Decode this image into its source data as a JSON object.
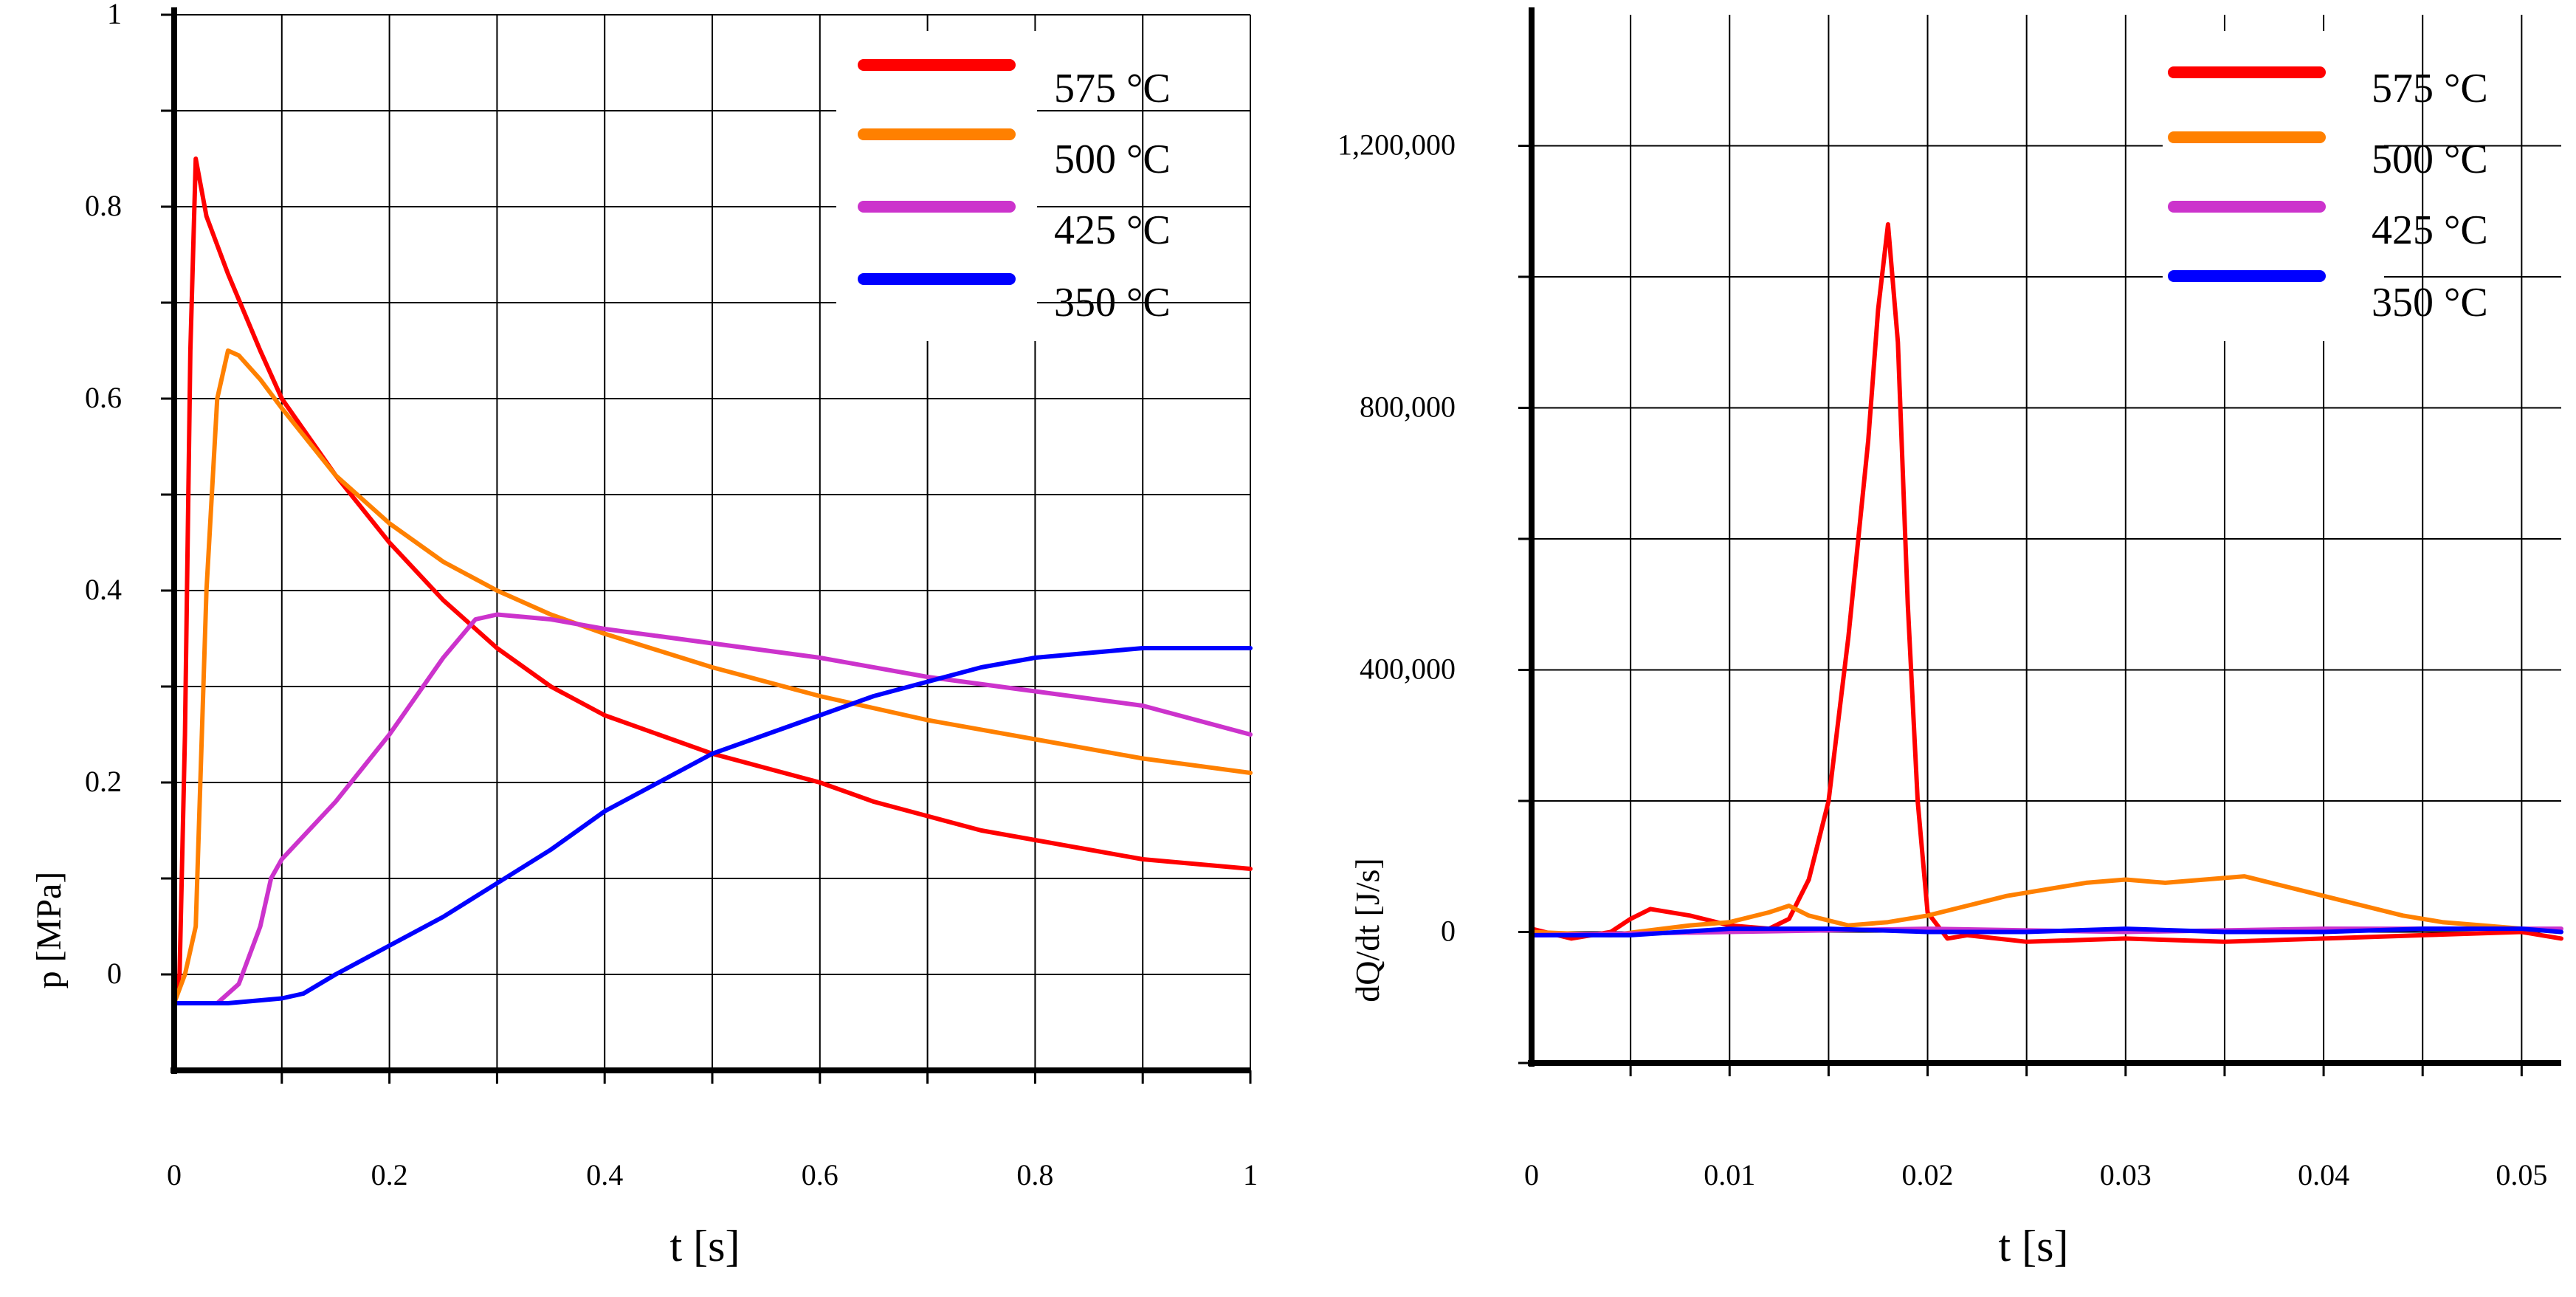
{
  "chart_data": [
    {
      "type": "line",
      "title": "",
      "xlabel": "t [s]",
      "ylabel": "p [MPa]",
      "xlim": [
        0,
        1
      ],
      "ylim": [
        -0.1,
        1.0
      ],
      "xticks": [
        0,
        0.2,
        0.4,
        0.6,
        0.8,
        1
      ],
      "xtick_labels": [
        "0",
        "0.2",
        "0.4",
        "0.6",
        "0.8",
        "1"
      ],
      "yticks": [
        0,
        0.2,
        0.4,
        0.6,
        0.8,
        1
      ],
      "ytick_labels": [
        "0",
        "0.2",
        "0.4",
        "0.6",
        "0.8",
        "1"
      ],
      "grid": true,
      "legend_position": "top-right",
      "series": [
        {
          "name": "575 °C",
          "color": "#ff0000",
          "x": [
            0,
            0.005,
            0.01,
            0.015,
            0.02,
            0.03,
            0.05,
            0.08,
            0.1,
            0.15,
            0.2,
            0.25,
            0.3,
            0.35,
            0.4,
            0.45,
            0.5,
            0.55,
            0.6,
            0.65,
            0.7,
            0.75,
            0.8,
            0.85,
            0.9,
            0.95,
            1.0
          ],
          "y": [
            -0.03,
            0.0,
            0.25,
            0.65,
            0.85,
            0.79,
            0.73,
            0.65,
            0.6,
            0.52,
            0.45,
            0.39,
            0.34,
            0.3,
            0.27,
            0.25,
            0.23,
            0.215,
            0.2,
            0.18,
            0.165,
            0.15,
            0.14,
            0.13,
            0.12,
            0.115,
            0.11
          ]
        },
        {
          "name": "500 °C",
          "color": "#ff8000",
          "x": [
            0,
            0.01,
            0.02,
            0.03,
            0.04,
            0.05,
            0.06,
            0.08,
            0.1,
            0.15,
            0.2,
            0.25,
            0.3,
            0.35,
            0.4,
            0.5,
            0.6,
            0.7,
            0.8,
            0.9,
            1.0
          ],
          "y": [
            -0.03,
            0.0,
            0.05,
            0.4,
            0.6,
            0.65,
            0.645,
            0.62,
            0.59,
            0.52,
            0.47,
            0.43,
            0.4,
            0.375,
            0.355,
            0.32,
            0.29,
            0.265,
            0.245,
            0.225,
            0.21
          ]
        },
        {
          "name": "425 °C",
          "color": "#cc33cc",
          "x": [
            0,
            0.02,
            0.04,
            0.06,
            0.08,
            0.09,
            0.1,
            0.15,
            0.2,
            0.25,
            0.28,
            0.3,
            0.35,
            0.4,
            0.5,
            0.6,
            0.7,
            0.8,
            0.9,
            1.0
          ],
          "y": [
            -0.03,
            -0.03,
            -0.03,
            -0.01,
            0.05,
            0.1,
            0.12,
            0.18,
            0.25,
            0.33,
            0.37,
            0.375,
            0.37,
            0.36,
            0.345,
            0.33,
            0.31,
            0.295,
            0.28,
            0.25
          ]
        },
        {
          "name": "350 °C",
          "color": "#0000ff",
          "x": [
            0,
            0.05,
            0.1,
            0.12,
            0.15,
            0.2,
            0.25,
            0.3,
            0.35,
            0.4,
            0.45,
            0.5,
            0.55,
            0.6,
            0.65,
            0.7,
            0.75,
            0.8,
            0.85,
            0.9,
            0.95,
            1.0
          ],
          "y": [
            -0.03,
            -0.03,
            -0.025,
            -0.02,
            0.0,
            0.03,
            0.06,
            0.095,
            0.13,
            0.17,
            0.2,
            0.23,
            0.25,
            0.27,
            0.29,
            0.305,
            0.32,
            0.33,
            0.335,
            0.34,
            0.34,
            0.34
          ]
        }
      ],
      "legend": [
        "575 °C",
        "500 °C",
        "425 °C",
        "350 °C"
      ]
    },
    {
      "type": "line",
      "title": "",
      "xlabel": "t [s]",
      "ylabel": "dQ/dt [J/s]",
      "xlim": [
        0,
        0.052
      ],
      "ylim": [
        -200000,
        1400000
      ],
      "xticks": [
        0,
        0.01,
        0.02,
        0.03,
        0.04,
        0.05
      ],
      "xtick_labels": [
        "0",
        "0.01",
        "0.02",
        "0.03",
        "0.04",
        "0.05"
      ],
      "yticks": [
        0,
        400000,
        800000,
        1200000
      ],
      "ytick_labels": [
        "0",
        "400,000",
        "800,000",
        "1,200,000"
      ],
      "grid": true,
      "legend_position": "top-right",
      "series": [
        {
          "name": "575 °C",
          "color": "#ff0000",
          "x": [
            0,
            0.002,
            0.004,
            0.005,
            0.006,
            0.008,
            0.01,
            0.012,
            0.013,
            0.014,
            0.015,
            0.016,
            0.017,
            0.0175,
            0.018,
            0.0185,
            0.019,
            0.0195,
            0.02,
            0.021,
            0.022,
            0.025,
            0.03,
            0.035,
            0.04,
            0.045,
            0.05,
            0.052
          ],
          "y": [
            5000,
            -10000,
            0,
            20000,
            35000,
            25000,
            10000,
            5000,
            20000,
            80000,
            200000,
            450000,
            750000,
            950000,
            1080000,
            900000,
            500000,
            200000,
            30000,
            -10000,
            -5000,
            -15000,
            -10000,
            -15000,
            -10000,
            -5000,
            0,
            -10000
          ]
        },
        {
          "name": "500 °C",
          "color": "#ff8000",
          "x": [
            0,
            0.004,
            0.008,
            0.01,
            0.012,
            0.013,
            0.014,
            0.016,
            0.018,
            0.02,
            0.022,
            0.024,
            0.026,
            0.028,
            0.03,
            0.032,
            0.034,
            0.036,
            0.038,
            0.04,
            0.042,
            0.044,
            0.046,
            0.048,
            0.05,
            0.052
          ],
          "y": [
            0,
            -5000,
            10000,
            15000,
            30000,
            40000,
            25000,
            10000,
            15000,
            25000,
            40000,
            55000,
            65000,
            75000,
            80000,
            75000,
            80000,
            85000,
            70000,
            55000,
            40000,
            25000,
            15000,
            10000,
            5000,
            0
          ]
        },
        {
          "name": "425 °C",
          "color": "#cc33cc",
          "x": [
            0,
            0.01,
            0.02,
            0.03,
            0.04,
            0.05,
            0.052
          ],
          "y": [
            -5000,
            0,
            5000,
            0,
            5000,
            5000,
            5000
          ]
        },
        {
          "name": "350 °C",
          "color": "#0000ff",
          "x": [
            0,
            0.005,
            0.01,
            0.015,
            0.02,
            0.025,
            0.03,
            0.035,
            0.04,
            0.045,
            0.05,
            0.052
          ],
          "y": [
            -5000,
            -5000,
            5000,
            5000,
            0,
            0,
            5000,
            0,
            0,
            5000,
            5000,
            0
          ]
        }
      ],
      "legend": [
        "575 °C",
        "500 °C",
        "425 °C",
        "350 °C"
      ]
    }
  ]
}
